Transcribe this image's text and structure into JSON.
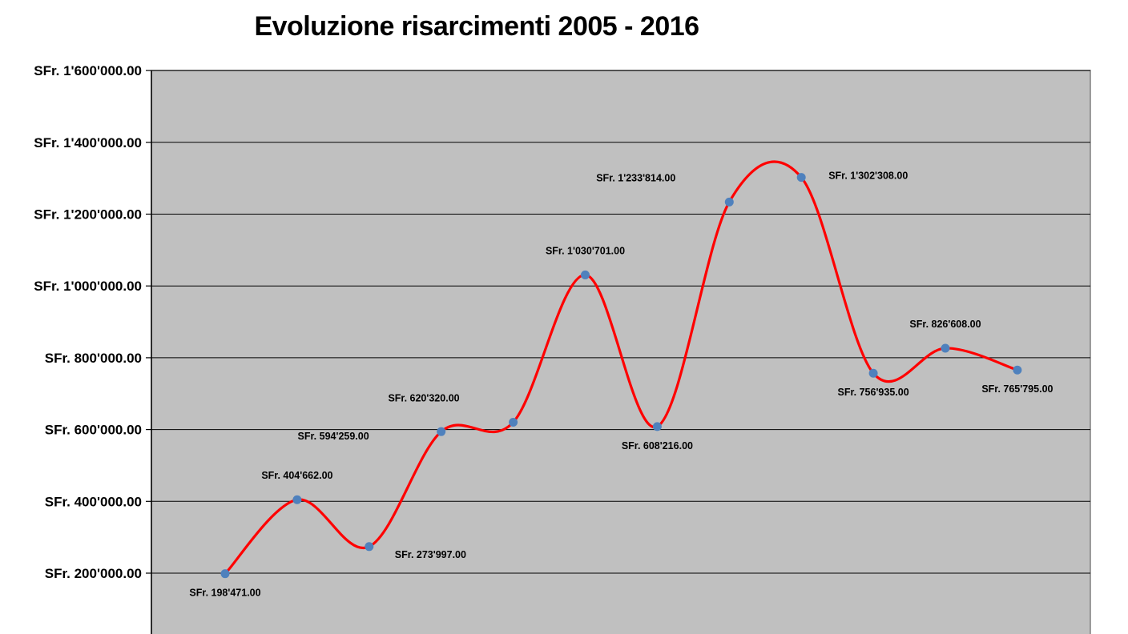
{
  "chart_data": {
    "type": "line",
    "title": "Evoluzione risarcimenti 2005 - 2016",
    "xlabel": "",
    "ylabel": "",
    "ylim": [
      0,
      1600000
    ],
    "y_ticks": [
      {
        "value": 200000,
        "label": "SFr. 200'000.00"
      },
      {
        "value": 400000,
        "label": "SFr. 400'000.00"
      },
      {
        "value": 600000,
        "label": "SFr. 600'000.00"
      },
      {
        "value": 800000,
        "label": "SFr. 800'000.00"
      },
      {
        "value": 1000000,
        "label": "SFr. 1'000'000.00"
      },
      {
        "value": 1200000,
        "label": "SFr. 1'200'000.00"
      },
      {
        "value": 1400000,
        "label": "SFr. 1'400'000.00"
      },
      {
        "value": 1600000,
        "label": "SFr. 1'600'000.00"
      }
    ],
    "grid": true,
    "smooth": true,
    "colors": {
      "line": "#ff0000",
      "marker": "#4f81bd",
      "plot_background": "#c0c0c0",
      "gridline": "#000000"
    },
    "series": [
      {
        "values": [
          198471,
          404662,
          273997,
          594259,
          620320,
          1030701,
          608216,
          1233814,
          1302308,
          756935,
          826608,
          765795
        ],
        "labels": [
          {
            "text": "SFr. 198'471.00",
            "placement": "below"
          },
          {
            "text": "SFr. 404'662.00",
            "placement": "above"
          },
          {
            "text": "SFr. 273'997.00",
            "placement": "right-below"
          },
          {
            "text": "SFr. 594'259.00",
            "placement": "left-below"
          },
          {
            "text": "SFr. 620'320.00",
            "placement": "left-above"
          },
          {
            "text": "SFr. 1'030'701.00",
            "placement": "above"
          },
          {
            "text": "SFr. 608'216.00",
            "placement": "below"
          },
          {
            "text": "SFr. 1'233'814.00",
            "placement": "left-above"
          },
          {
            "text": "SFr. 1'302'308.00",
            "placement": "right"
          },
          {
            "text": "SFr. 756'935.00",
            "placement": "below"
          },
          {
            "text": "SFr. 826'608.00",
            "placement": "above"
          },
          {
            "text": "SFr. 765'795.00",
            "placement": "below"
          }
        ]
      }
    ]
  }
}
